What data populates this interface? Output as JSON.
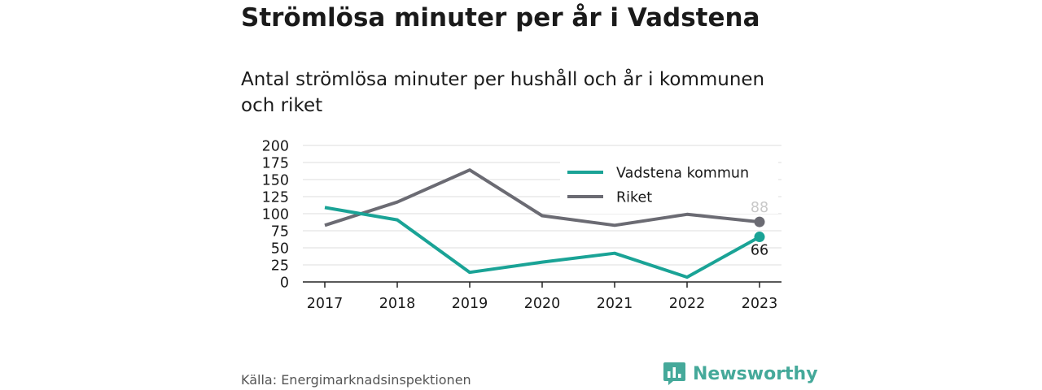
{
  "header": {
    "title": "Strömlösa minuter per år i Vadstena",
    "subtitle": "Antal strömlösa minuter per hushåll och år i kommunen och riket"
  },
  "chart_data": {
    "type": "line",
    "title": "Strömlösa minuter per år i Vadstena",
    "subtitle": "Antal strömlösa minuter per hushåll och år i kommunen och riket",
    "xlabel": "",
    "ylabel": "",
    "categories": [
      "2017",
      "2018",
      "2019",
      "2020",
      "2021",
      "2022",
      "2023"
    ],
    "ylim": [
      0,
      200
    ],
    "yticks": [
      0,
      25,
      50,
      75,
      100,
      125,
      150,
      175,
      200
    ],
    "grid": true,
    "legend_position": "top-right",
    "series": [
      {
        "name": "Vadstena kommun",
        "color": "#1aa396",
        "values": [
          109,
          91,
          14,
          29,
          42,
          7,
          66
        ],
        "end_label": "66"
      },
      {
        "name": "Riket",
        "color": "#6b6b73",
        "values": [
          83,
          117,
          164,
          97,
          83,
          99,
          88
        ],
        "end_label": "88"
      }
    ]
  },
  "footer": {
    "source": "Källa: Energimarknadsinspektionen",
    "brand": "Newsworthy",
    "brand_color": "#45a99a"
  }
}
